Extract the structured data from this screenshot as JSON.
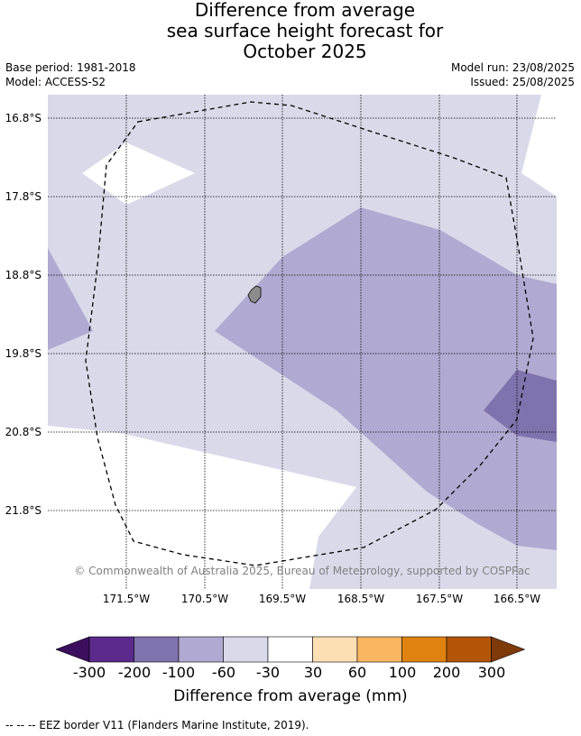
{
  "title": {
    "line1": "Difference from average",
    "line2": "sea surface height forecast for",
    "line3": "October 2025"
  },
  "meta": {
    "base_period": "Base period: 1981-2018",
    "model": "Model: ACCESS-S2",
    "model_run": "Model run: 23/08/2025",
    "issued": "Issued: 25/08/2025"
  },
  "map": {
    "lat_labels": [
      "16.8°S",
      "17.8°S",
      "18.8°S",
      "19.8°S",
      "20.8°S",
      "21.8°S"
    ],
    "lon_labels": [
      "171.5°W",
      "170.5°W",
      "169.5°W",
      "168.5°W",
      "167.5°W",
      "166.5°W"
    ],
    "copyright": "© Commonwealth of Australia 2025, Bureau of Meteorology, supported by COSPPac",
    "colors": {
      "band_-60_-30": "#d9d9ea",
      "band_-100_-60": "#b0a9d1",
      "band_-200_-100": "#7f72ad",
      "land": "#8c8c8c",
      "grid": "#000000"
    }
  },
  "colorbar": {
    "ticks": [
      "-300",
      "-200",
      "-100",
      "-60",
      "-30",
      "30",
      "60",
      "100",
      "200",
      "300"
    ],
    "colors": [
      "#3b0f5e",
      "#5b2a8c",
      "#7f72ad",
      "#b0a9d1",
      "#d9d9ea",
      "#ffffff",
      "#fddfb4",
      "#fbb661",
      "#e0820f",
      "#b25506",
      "#7e3a08"
    ],
    "label": "Difference from average (mm)"
  },
  "footnote": "--  --  -- EEZ border V11 (Flanders Marine Institute, 2019)."
}
